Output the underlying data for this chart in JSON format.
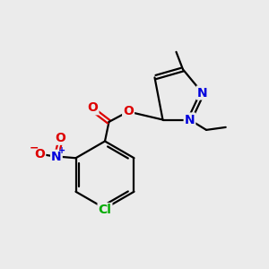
{
  "bg_color": "#ebebeb",
  "bond_color": "#000000",
  "N_color": "#0000dd",
  "O_color": "#dd0000",
  "Cl_color": "#00aa00",
  "lw": 1.6,
  "figsize": [
    3.0,
    3.0
  ],
  "dpi": 100,
  "xlim": [
    0,
    10
  ],
  "ylim": [
    0,
    10
  ],
  "font_size": 10
}
